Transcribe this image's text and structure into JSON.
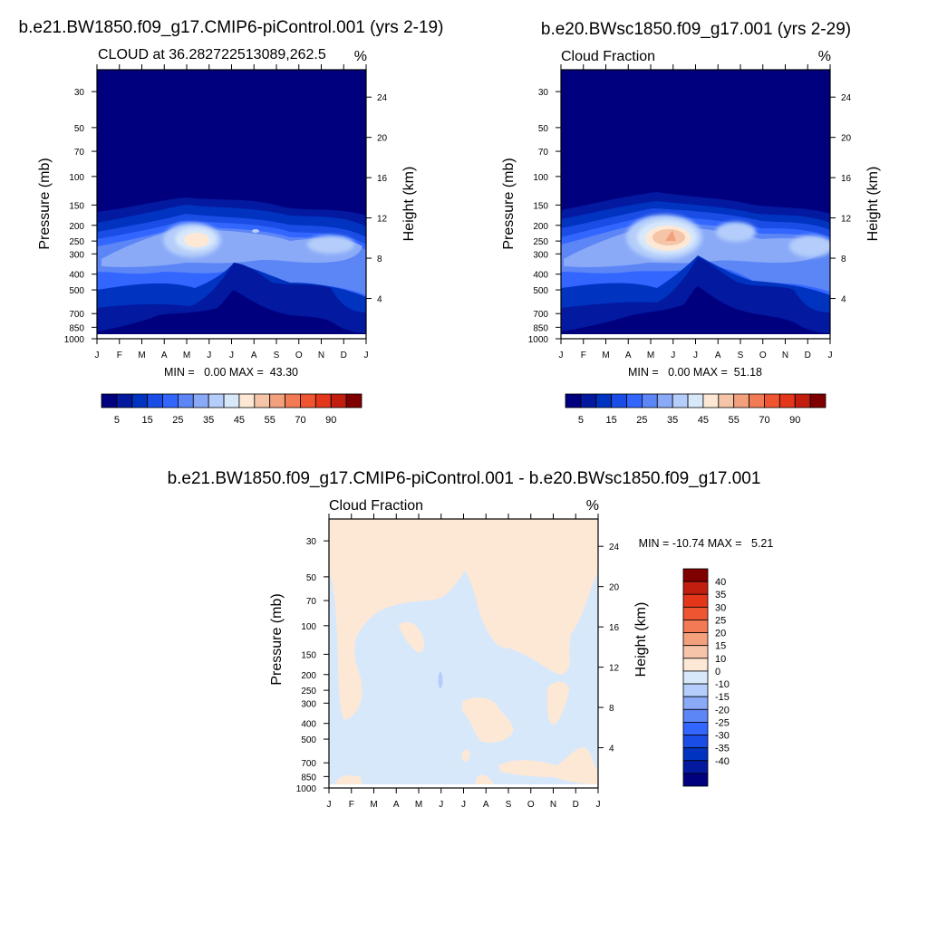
{
  "chart_data": [
    {
      "type": "heatmap",
      "suptitle": "b.e21.BW1850.f09_g17.CMIP6-piControl.001 (yrs 2-19)",
      "title": "CLOUD at 36.282722513089,262.5",
      "units": "%",
      "xlabel": "",
      "ylabel": "Pressure (mb)",
      "ylabel_right": "Height (km)",
      "x_ticks": [
        "J",
        "F",
        "M",
        "A",
        "M",
        "J",
        "J",
        "A",
        "S",
        "O",
        "N",
        "D",
        "J"
      ],
      "y_ticks": [
        30,
        50,
        70,
        100,
        150,
        200,
        250,
        300,
        400,
        500,
        700,
        850,
        1000
      ],
      "y_right_ticks": [
        4,
        8,
        12,
        16,
        20,
        24
      ],
      "ylim": [
        1000,
        22
      ],
      "stats": "MIN =   0.00 MAX =  43.30",
      "min": 0.0,
      "max": 43.3,
      "fill_colors": [
        "#00007f",
        "#0219a0",
        "#0033c0",
        "#1a4de6",
        "#3366ff",
        "#5c85f5",
        "#8aaaf8",
        "#b4cdfa",
        "#d8e8fb",
        "#fde8d5",
        "#f6c4a8",
        "#f3a07d",
        "#f27a55",
        "#ef5530",
        "#e3361b",
        "#c21e10",
        "#800000"
      ],
      "levels": [
        0,
        5,
        10,
        15,
        20,
        25,
        30,
        35,
        40,
        45,
        50,
        55,
        60,
        70,
        80,
        90,
        100
      ],
      "colorbar_labels": [
        "5",
        "15",
        "25",
        "35",
        "45",
        "55",
        "70",
        "90"
      ],
      "colorbar_label_levels": [
        5,
        15,
        25,
        35,
        45,
        55,
        70,
        90
      ]
    },
    {
      "type": "heatmap",
      "suptitle": "b.e20.BWsc1850.f09_g17.001 (yrs 2-29)",
      "title": "Cloud Fraction",
      "units": "%",
      "xlabel": "",
      "ylabel": "Pressure (mb)",
      "ylabel_right": "Height (km)",
      "x_ticks": [
        "J",
        "F",
        "M",
        "A",
        "M",
        "J",
        "J",
        "A",
        "S",
        "O",
        "N",
        "D",
        "J"
      ],
      "y_ticks": [
        30,
        50,
        70,
        100,
        150,
        200,
        250,
        300,
        400,
        500,
        700,
        850,
        1000
      ],
      "y_right_ticks": [
        4,
        8,
        12,
        16,
        20,
        24
      ],
      "ylim": [
        1000,
        22
      ],
      "stats": "MIN =   0.00 MAX =  51.18",
      "min": 0.0,
      "max": 51.18,
      "fill_colors": [
        "#00007f",
        "#0219a0",
        "#0033c0",
        "#1a4de6",
        "#3366ff",
        "#5c85f5",
        "#8aaaf8",
        "#b4cdfa",
        "#d8e8fb",
        "#fde8d5",
        "#f6c4a8",
        "#f3a07d",
        "#f27a55",
        "#ef5530",
        "#e3361b",
        "#c21e10",
        "#800000"
      ],
      "levels": [
        0,
        5,
        10,
        15,
        20,
        25,
        30,
        35,
        40,
        45,
        50,
        55,
        60,
        70,
        80,
        90,
        100
      ],
      "colorbar_labels": [
        "5",
        "15",
        "25",
        "35",
        "45",
        "55",
        "70",
        "90"
      ],
      "colorbar_label_levels": [
        5,
        15,
        25,
        35,
        45,
        55,
        70,
        90
      ]
    },
    {
      "type": "heatmap",
      "suptitle": "b.e21.BW1850.f09_g17.CMIP6-piControl.001 - b.e20.BWsc1850.f09_g17.001",
      "title": "Cloud Fraction",
      "units": "%",
      "xlabel": "",
      "ylabel": "Pressure (mb)",
      "ylabel_right": "Height (km)",
      "x_ticks": [
        "J",
        "F",
        "M",
        "A",
        "M",
        "J",
        "J",
        "A",
        "S",
        "O",
        "N",
        "D",
        "J"
      ],
      "y_ticks": [
        30,
        50,
        70,
        100,
        150,
        200,
        250,
        300,
        400,
        500,
        700,
        850,
        1000
      ],
      "y_right_ticks": [
        4,
        8,
        12,
        16,
        20,
        24
      ],
      "ylim": [
        1000,
        22
      ],
      "stats": "MIN = -10.74 MAX =   5.21",
      "min": -10.74,
      "max": 5.21,
      "fill_colors": [
        "#00007f",
        "#0219a0",
        "#0033c0",
        "#1a4de6",
        "#3366ff",
        "#5c85f5",
        "#8aaaf8",
        "#b4cdfa",
        "#d8e8fb",
        "#fde8d5",
        "#f6c4a8",
        "#f3a07d",
        "#f27a55",
        "#ef5530",
        "#e3361b",
        "#c21e10",
        "#800000"
      ],
      "levels": [
        -40,
        -35,
        -30,
        -25,
        -20,
        -15,
        -10,
        0,
        10,
        15,
        20,
        25,
        30,
        35,
        40
      ],
      "colorbar_labels": [
        "40",
        "35",
        "30",
        "25",
        "20",
        "15",
        "10",
        "0",
        "-10",
        "-15",
        "-20",
        "-25",
        "-30",
        "-35",
        "-40"
      ]
    }
  ]
}
